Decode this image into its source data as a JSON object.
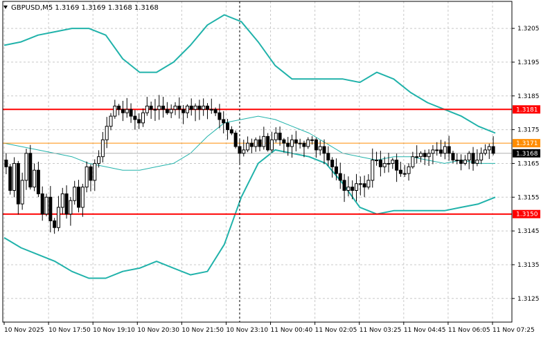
{
  "header": {
    "symbol_line": "GBPUSD,M5  1.3169 1.3169 1.3168 1.3168"
  },
  "colors": {
    "background": "#ffffff",
    "grid": "#c8c8c8",
    "candle": "#000000",
    "bollinger_outer": "#20b2aa",
    "bollinger_mid": "#20b2aa",
    "support_resistance": "#ff0000",
    "orange_level": "#ff8c00",
    "price_tag_bg": "#000000"
  },
  "chart_data": {
    "type": "candlestick",
    "symbol": "GBPUSD",
    "timeframe": "M5",
    "ohlc_header": {
      "open": 1.3169,
      "high": 1.3169,
      "low": 1.3168,
      "close": 1.3168
    },
    "ylim": [
      1.3118,
      1.3213
    ],
    "yticks": [
      "1.3205",
      "1.3195",
      "1.3185",
      "1.3175",
      "1.3165",
      "1.3155",
      "1.3145",
      "1.3135",
      "1.3125"
    ],
    "xticks": [
      "10 Nov 2025",
      "10 Nov 17:50",
      "10 Nov 19:10",
      "10 Nov 20:30",
      "10 Nov 21:50",
      "10 Nov 23:10",
      "11 Nov 00:40",
      "11 Nov 02:05",
      "11 Nov 03:25",
      "11 Nov 04:45",
      "11 Nov 06:05",
      "11 Nov 07:25"
    ],
    "grid": true,
    "horizontal_levels": [
      {
        "price": 1.3181,
        "label": "1.3181",
        "color": "#ff0000"
      },
      {
        "price": 1.315,
        "label": "1.3150",
        "color": "#ff0000"
      },
      {
        "price": 1.3171,
        "label": "1.3171",
        "color": "#ff8c00"
      }
    ],
    "current_price": {
      "price": 1.3168,
      "label": "1.3168"
    },
    "vertical_marker_index": 58,
    "closes": [
      1.3164,
      1.3157,
      1.3165,
      1.3153,
      1.316,
      1.3168,
      1.3158,
      1.3163,
      1.3156,
      1.315,
      1.3155,
      1.3148,
      1.3146,
      1.3152,
      1.3156,
      1.315,
      1.3154,
      1.3158,
      1.3152,
      1.3158,
      1.3164,
      1.316,
      1.3165,
      1.3167,
      1.3172,
      1.3176,
      1.3179,
      1.3182,
      1.3181,
      1.318,
      1.3181,
      1.3179,
      1.3178,
      1.3177,
      1.318,
      1.3182,
      1.3181,
      1.3181,
      1.3182,
      1.3181,
      1.318,
      1.3181,
      1.3182,
      1.3181,
      1.318,
      1.3182,
      1.3181,
      1.3182,
      1.3181,
      1.3182,
      1.3181,
      1.3181,
      1.318,
      1.3178,
      1.3177,
      1.3175,
      1.3174,
      1.317,
      1.3168,
      1.3169,
      1.3171,
      1.317,
      1.3172,
      1.317,
      1.3173,
      1.3169,
      1.3172,
      1.3174,
      1.3172,
      1.3171,
      1.317,
      1.3172,
      1.3171,
      1.3171,
      1.317,
      1.3172,
      1.3172,
      1.3169,
      1.317,
      1.3168,
      1.3166,
      1.3164,
      1.3162,
      1.316,
      1.3157,
      1.3158,
      1.3157,
      1.3159,
      1.3159,
      1.3158,
      1.316,
      1.3166,
      1.3166,
      1.3164,
      1.3165,
      1.3165,
      1.3166,
      1.3163,
      1.3162,
      1.3162,
      1.3164,
      1.3167,
      1.3167,
      1.3168,
      1.3167,
      1.3168,
      1.3169,
      1.3169,
      1.3168,
      1.317,
      1.3168,
      1.3166,
      1.3166,
      1.3165,
      1.3166,
      1.3168,
      1.3165,
      1.3166,
      1.3168,
      1.3169,
      1.317,
      1.3168
    ],
    "series": [
      {
        "type": "bollinger_upper",
        "values": [
          1.32,
          1.3201,
          1.3203,
          1.3204,
          1.3205,
          1.3205,
          1.3203,
          1.3196,
          1.3192,
          1.3192,
          1.3195,
          1.32,
          1.3206,
          1.3209,
          1.3207,
          1.3201,
          1.3194,
          1.319,
          1.319,
          1.319,
          1.319,
          1.3189,
          1.3192,
          1.319,
          1.3186,
          1.3183,
          1.3181,
          1.3179,
          1.3176,
          1.3174
        ]
      },
      {
        "type": "bollinger_mid",
        "values": [
          1.3171,
          1.317,
          1.3169,
          1.3168,
          1.3167,
          1.3165,
          1.3164,
          1.3163,
          1.3163,
          1.3164,
          1.3165,
          1.3168,
          1.3173,
          1.3177,
          1.3178,
          1.3179,
          1.3178,
          1.3176,
          1.3174,
          1.3171,
          1.3168,
          1.3167,
          1.3166,
          1.3167,
          1.3167,
          1.3166,
          1.3165,
          1.3166,
          1.3165,
          1.3165
        ]
      },
      {
        "type": "bollinger_lower",
        "values": [
          1.3143,
          1.314,
          1.3138,
          1.3136,
          1.3133,
          1.3131,
          1.3131,
          1.3133,
          1.3134,
          1.3136,
          1.3134,
          1.3132,
          1.3133,
          1.3141,
          1.3155,
          1.3165,
          1.3169,
          1.3168,
          1.3167,
          1.3165,
          1.3159,
          1.3152,
          1.315,
          1.3151,
          1.3151,
          1.3151,
          1.3151,
          1.3152,
          1.3153,
          1.3155
        ]
      }
    ]
  }
}
